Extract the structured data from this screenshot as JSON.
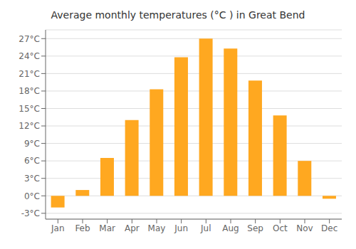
{
  "chart_data": {
    "type": "bar",
    "title": "Average monthly temperatures (°C ) in Great Bend",
    "categories": [
      "Jan",
      "Feb",
      "Mar",
      "Apr",
      "May",
      "Jun",
      "Jul",
      "Aug",
      "Sep",
      "Oct",
      "Nov",
      "Dec"
    ],
    "values": [
      -2.0,
      1.0,
      6.5,
      13.0,
      18.3,
      23.8,
      27.0,
      25.3,
      19.8,
      13.8,
      6.0,
      -0.5
    ],
    "color": "#FFA820",
    "ylim": [
      -4,
      28.5
    ],
    "yticks": [
      {
        "value": -3,
        "label": "-3°C"
      },
      {
        "value": 0,
        "label": "0°C"
      },
      {
        "value": 3,
        "label": "3°C"
      },
      {
        "value": 6,
        "label": "6°C"
      },
      {
        "value": 9,
        "label": "9°C"
      },
      {
        "value": 12,
        "label": "12°C"
      },
      {
        "value": 15,
        "label": "15°C"
      },
      {
        "value": 18,
        "label": "18°C"
      },
      {
        "value": 21,
        "label": "21°C"
      },
      {
        "value": 24,
        "label": "24°C"
      },
      {
        "value": 27,
        "label": "27°C"
      }
    ],
    "grid": true
  }
}
